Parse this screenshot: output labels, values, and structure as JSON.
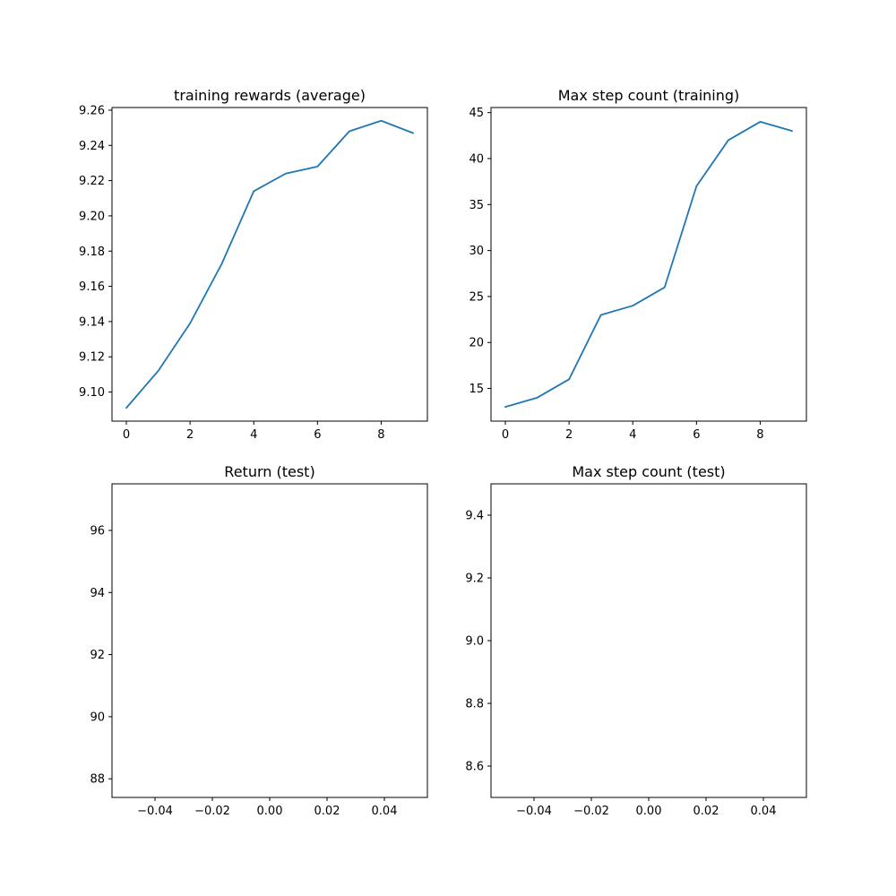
{
  "colors": {
    "series": "#1f77b4",
    "axes": "#000000",
    "background": "#ffffff"
  },
  "chart_data": [
    {
      "id": "training-rewards",
      "type": "line",
      "title": "training rewards (average)",
      "xlabel": "",
      "ylabel": "",
      "xlim": [
        -0.45,
        9.45
      ],
      "ylim": [
        9.0835,
        9.2615
      ],
      "xticks": [
        0,
        2,
        4,
        6,
        8
      ],
      "xtick_labels": [
        "0",
        "2",
        "4",
        "6",
        "8"
      ],
      "yticks": [
        9.1,
        9.12,
        9.14,
        9.16,
        9.18,
        9.2,
        9.22,
        9.24,
        9.26
      ],
      "ytick_labels": [
        "9.10",
        "9.12",
        "9.14",
        "9.16",
        "9.18",
        "9.20",
        "9.22",
        "9.24",
        "9.26"
      ],
      "grid": false,
      "series": [
        {
          "x": [
            0,
            1,
            2,
            3,
            4,
            5,
            6,
            7,
            8,
            9
          ],
          "values": [
            9.091,
            9.112,
            9.139,
            9.173,
            9.214,
            9.224,
            9.228,
            9.248,
            9.254,
            9.247
          ]
        }
      ]
    },
    {
      "id": "max-step-training",
      "type": "line",
      "title": "Max step count (training)",
      "xlabel": "",
      "ylabel": "",
      "xlim": [
        -0.45,
        9.45
      ],
      "ylim": [
        11.45,
        45.55
      ],
      "xticks": [
        0,
        2,
        4,
        6,
        8
      ],
      "xtick_labels": [
        "0",
        "2",
        "4",
        "6",
        "8"
      ],
      "yticks": [
        15,
        20,
        25,
        30,
        35,
        40,
        45
      ],
      "ytick_labels": [
        "15",
        "20",
        "25",
        "30",
        "35",
        "40",
        "45"
      ],
      "grid": false,
      "series": [
        {
          "x": [
            0,
            1,
            2,
            3,
            4,
            5,
            6,
            7,
            8,
            9
          ],
          "values": [
            13,
            14,
            16,
            23,
            24,
            26,
            37,
            42,
            44,
            43
          ]
        }
      ]
    },
    {
      "id": "return-test",
      "type": "line",
      "title": "Return (test)",
      "xlabel": "",
      "ylabel": "",
      "xlim": [
        -0.055,
        0.055
      ],
      "ylim": [
        87.4,
        97.5
      ],
      "xticks": [
        -0.04,
        -0.02,
        0.0,
        0.02,
        0.04
      ],
      "xtick_labels": [
        "−0.04",
        "−0.02",
        "0.00",
        "0.02",
        "0.04"
      ],
      "yticks": [
        88,
        90,
        92,
        94,
        96
      ],
      "ytick_labels": [
        "88",
        "90",
        "92",
        "94",
        "96"
      ],
      "grid": false,
      "series": [
        {
          "x": [],
          "values": []
        }
      ]
    },
    {
      "id": "max-step-test",
      "type": "line",
      "title": "Max step count (test)",
      "xlabel": "",
      "ylabel": "",
      "xlim": [
        -0.055,
        0.055
      ],
      "ylim": [
        8.5,
        9.5
      ],
      "xticks": [
        -0.04,
        -0.02,
        0.0,
        0.02,
        0.04
      ],
      "xtick_labels": [
        "−0.04",
        "−0.02",
        "0.00",
        "0.02",
        "0.04"
      ],
      "yticks": [
        8.6,
        8.8,
        9.0,
        9.2,
        9.4
      ],
      "ytick_labels": [
        "8.6",
        "8.8",
        "9.0",
        "9.2",
        "9.4"
      ],
      "grid": false,
      "series": [
        {
          "x": [],
          "values": []
        }
      ]
    }
  ]
}
